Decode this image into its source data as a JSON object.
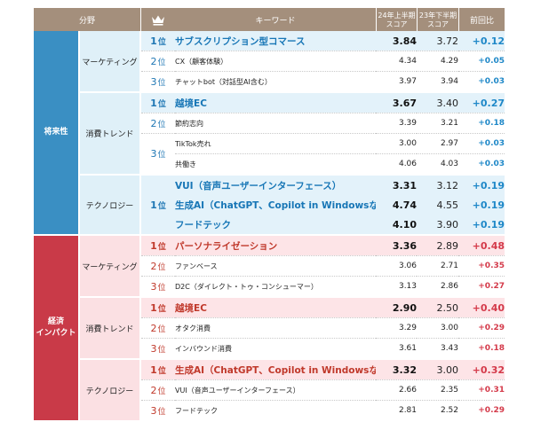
{
  "header": {
    "category": "分野",
    "keyword": "キーワード",
    "score_current": [
      "24年上半期",
      "スコア"
    ],
    "score_prev": [
      "23年下半期",
      "スコア"
    ],
    "change": "前回比"
  },
  "rank_suffix": "位",
  "sections": [
    {
      "category": "将来性",
      "color": "#3a8fc3",
      "groups": [
        {
          "name": "マーケティング",
          "rows": [
            {
              "rank": "1",
              "keyword": "サブスクリプション型コマース",
              "score_current": "3.84",
              "score_prev": "3.72",
              "change": "+0.12",
              "top": true
            },
            {
              "rank": "2",
              "keyword": "CX（顧客体験）",
              "score_current": "4.34",
              "score_prev": "4.29",
              "change": "+0.05",
              "top": false
            },
            {
              "rank": "3",
              "keyword": "チャットbot（対話型AI含む）",
              "score_current": "3.97",
              "score_prev": "3.94",
              "change": "+0.03",
              "top": false
            }
          ]
        },
        {
          "name": "消費トレンド",
          "rows": [
            {
              "rank": "1",
              "keyword": "越境EC",
              "score_current": "3.67",
              "score_prev": "3.40",
              "change": "+0.27",
              "top": true
            },
            {
              "rank": "2",
              "keyword": "節約志向",
              "score_current": "3.39",
              "score_prev": "3.21",
              "change": "+0.18",
              "top": false
            },
            {
              "rank": "3",
              "keyword": "TikTok売れ",
              "score_current": "3.00",
              "score_prev": "2.97",
              "change": "+0.03",
              "top": false
            },
            {
              "rank": "",
              "keyword": "共働き",
              "score_current": "4.06",
              "score_prev": "4.03",
              "change": "+0.03",
              "top": false
            }
          ]
        },
        {
          "name": "テクノロジー",
          "rows": [
            {
              "rank": "1",
              "keyword": "VUI（音声ユーザーインターフェース）",
              "score_current": "3.31",
              "score_prev": "3.12",
              "change": "+0.19",
              "top": true
            },
            {
              "rank": "",
              "keyword": "生成AI（ChatGPT、Copilot in Windowsなど）",
              "score_current": "4.74",
              "score_prev": "4.55",
              "change": "+0.19",
              "top": true
            },
            {
              "rank": "",
              "keyword": "フードテック",
              "score_current": "4.10",
              "score_prev": "3.90",
              "change": "+0.19",
              "top": true
            }
          ]
        }
      ]
    },
    {
      "category": "経済\nインパクト",
      "color": "#c93a48",
      "groups": [
        {
          "name": "マーケティング",
          "rows": [
            {
              "rank": "1",
              "keyword": "パーソナライゼーション",
              "score_current": "3.36",
              "score_prev": "2.89",
              "change": "+0.48",
              "top": true
            },
            {
              "rank": "2",
              "keyword": "ファンベース",
              "score_current": "3.06",
              "score_prev": "2.71",
              "change": "+0.35",
              "top": false
            },
            {
              "rank": "3",
              "keyword": "D2C（ダイレクト・トゥ・コンシューマー）",
              "score_current": "3.13",
              "score_prev": "2.86",
              "change": "+0.27",
              "top": false
            }
          ]
        },
        {
          "name": "消費トレンド",
          "rows": [
            {
              "rank": "1",
              "keyword": "越境EC",
              "score_current": "2.90",
              "score_prev": "2.50",
              "change": "+0.40",
              "top": true
            },
            {
              "rank": "2",
              "keyword": "オタク消費",
              "score_current": "3.29",
              "score_prev": "3.00",
              "change": "+0.29",
              "top": false
            },
            {
              "rank": "3",
              "keyword": "インバウンド消費",
              "score_current": "3.61",
              "score_prev": "3.43",
              "change": "+0.18",
              "top": false
            }
          ]
        },
        {
          "name": "テクノロジー",
          "rows": [
            {
              "rank": "1",
              "keyword": "生成AI（ChatGPT、Copilot in Windowsなど）",
              "score_current": "3.32",
              "score_prev": "3.00",
              "change": "+0.32",
              "top": true
            },
            {
              "rank": "2",
              "keyword": "VUI（音声ユーザーインターフェース）",
              "score_current": "2.66",
              "score_prev": "2.35",
              "change": "+0.31",
              "top": false
            },
            {
              "rank": "3",
              "keyword": "フードテック",
              "score_current": "2.81",
              "score_prev": "2.52",
              "change": "+0.29",
              "top": false
            }
          ]
        }
      ]
    }
  ],
  "icons": {
    "rank_header": "crown-icon"
  },
  "colors": {
    "header_bg": "#a48f7c",
    "blue": "#3a8fc3",
    "red": "#c93a48",
    "crown": "#a48f7c"
  }
}
